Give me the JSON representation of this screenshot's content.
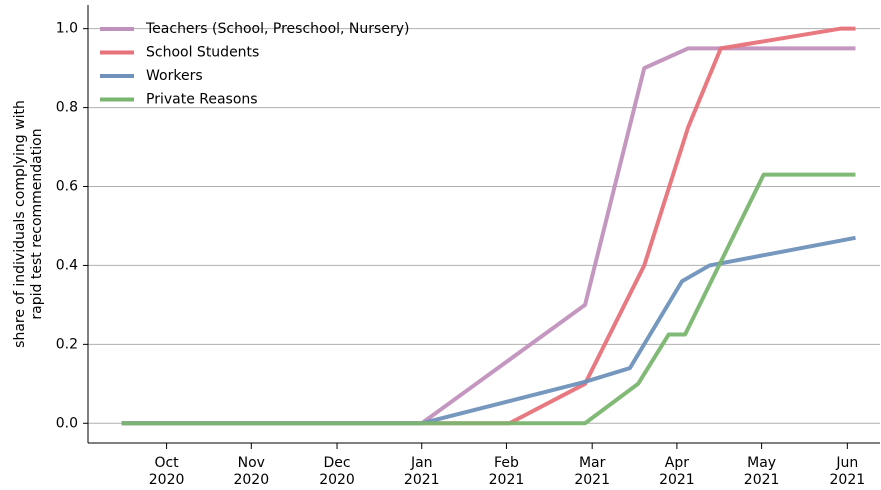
{
  "chart_data": {
    "type": "line",
    "ylabel": [
      "share of individuals complying with",
      "rapid test recommendation"
    ],
    "xlim": [
      2020.673,
      2021.449
    ],
    "xticks": [
      {
        "value": 2020.75,
        "label": [
          "Oct",
          "2020"
        ]
      },
      {
        "value": 2020.833,
        "label": [
          "Nov",
          "2020"
        ]
      },
      {
        "value": 2020.917,
        "label": [
          "Dec",
          "2020"
        ]
      },
      {
        "value": 2021.0,
        "label": [
          "Jan",
          "2021"
        ]
      },
      {
        "value": 2021.083,
        "label": [
          "Feb",
          "2021"
        ]
      },
      {
        "value": 2021.167,
        "label": [
          "Mar",
          "2021"
        ]
      },
      {
        "value": 2021.25,
        "label": [
          "Apr",
          "2021"
        ]
      },
      {
        "value": 2021.333,
        "label": [
          "May",
          "2021"
        ]
      },
      {
        "value": 2021.417,
        "label": [
          "Jun",
          "2021"
        ]
      }
    ],
    "ylim": [
      -0.05,
      1.06
    ],
    "yticks": [
      {
        "value": 0,
        "label": "0.0"
      },
      {
        "value": 0.2,
        "label": "0.2"
      },
      {
        "value": 0.4,
        "label": "0.4"
      },
      {
        "value": 0.6,
        "label": "0.6"
      },
      {
        "value": 0.8,
        "label": "0.8"
      },
      {
        "value": 1,
        "label": "1.0"
      }
    ],
    "grid": true,
    "legend": "upper left",
    "series": [
      {
        "name": "Teachers (School, Preschool, Nursery)",
        "color": "#c191bd",
        "x": [
          2020.706,
          2021.0,
          2021.16,
          2021.218,
          2021.261,
          2021.425
        ],
        "values": [
          0,
          0,
          0.3,
          0.9,
          0.95,
          0.95
        ]
      },
      {
        "name": "School Students",
        "color": "#e7727a",
        "x": [
          2020.706,
          2021.086,
          2021.16,
          2021.218,
          2021.261,
          2021.293,
          2021.41,
          2021.425
        ],
        "values": [
          0,
          0,
          0.1,
          0.4,
          0.75,
          0.95,
          1.0,
          1.0
        ]
      },
      {
        "name": "Workers",
        "color": "#6f91ba",
        "x": [
          2020.706,
          2021.0,
          2021.16,
          2021.204,
          2021.255,
          2021.282,
          2021.425
        ],
        "values": [
          0,
          0,
          0.105,
          0.14,
          0.36,
          0.4,
          0.47
        ]
      },
      {
        "name": "Private Reasons",
        "color": "#7ab56f",
        "x": [
          2020.706,
          2021.16,
          2021.212,
          2021.242,
          2021.258,
          2021.335,
          2021.425
        ],
        "values": [
          0,
          0,
          0.1,
          0.225,
          0.225,
          0.63,
          0.63
        ]
      }
    ]
  }
}
